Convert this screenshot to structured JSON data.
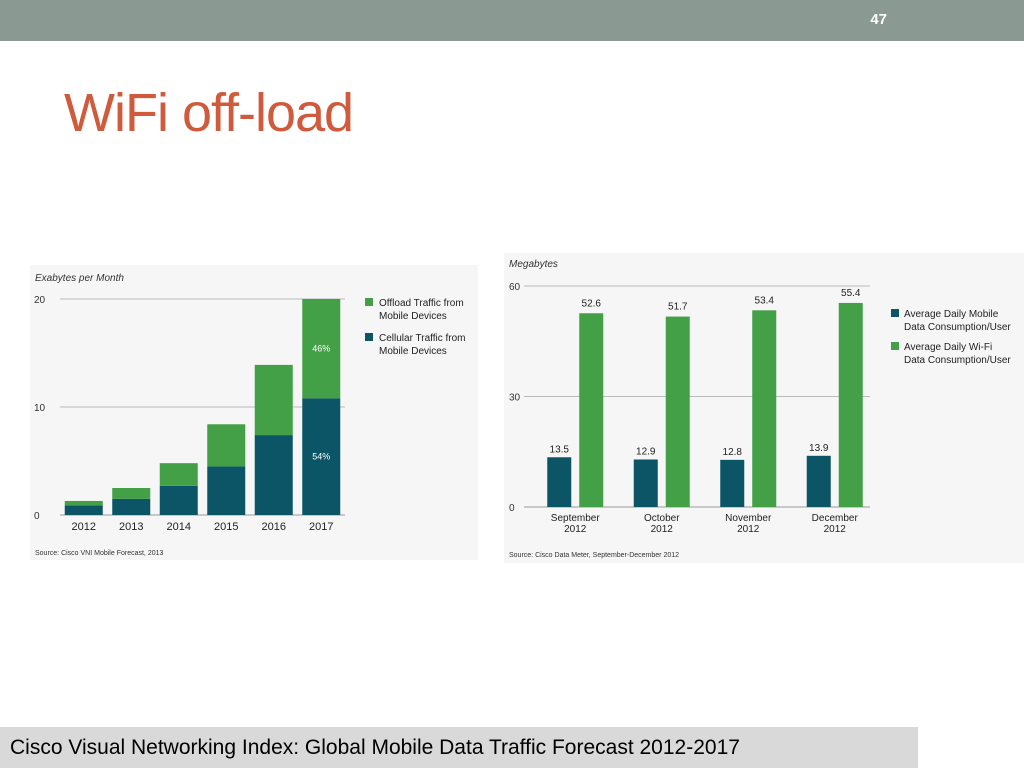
{
  "header": {
    "slide_number": "47",
    "bar_color": "#8a9a92"
  },
  "title": "WiFi off-load",
  "caption": "Cisco Visual Networking Index: Global Mobile Data Traffic Forecast 2012-2017",
  "colors": {
    "title": "#cf5a3c",
    "offload": "#43a047",
    "cellular": "#0b5566"
  },
  "chart_data": [
    {
      "type": "bar",
      "stacked": true,
      "ylabel": "Exabytes per Month",
      "ylim": [
        0,
        20
      ],
      "yticks": [
        0,
        10,
        20
      ],
      "categories": [
        "2012",
        "2013",
        "2014",
        "2015",
        "2016",
        "2017"
      ],
      "series": [
        {
          "name": "Cellular Traffic from Mobile Devices",
          "values": [
            0.9,
            1.5,
            2.7,
            4.5,
            7.4,
            10.8
          ]
        },
        {
          "name": "Offload Traffic from Mobile Devices",
          "values": [
            0.4,
            1.0,
            2.1,
            3.9,
            6.5,
            9.2
          ]
        }
      ],
      "data_labels": [
        {
          "category": "2017",
          "series": "Offload Traffic from Mobile Devices",
          "text": "46%"
        },
        {
          "category": "2017",
          "series": "Cellular Traffic from Mobile Devices",
          "text": "54%"
        }
      ],
      "legend": {
        "placement": "right",
        "items": [
          "Offload Traffic from Mobile Devices",
          "Cellular Traffic from Mobile Devices"
        ]
      },
      "source": "Source: Cisco VNI Mobile Forecast, 2013"
    },
    {
      "type": "bar",
      "stacked": false,
      "ylabel": "Megabytes",
      "ylim": [
        0,
        60
      ],
      "yticks": [
        0,
        30,
        60
      ],
      "categories": [
        "September 2012",
        "October 2012",
        "November 2012",
        "December 2012"
      ],
      "series": [
        {
          "name": "Average Daily Mobile Data Consumption/User",
          "values": [
            13.5,
            12.9,
            12.8,
            13.9
          ]
        },
        {
          "name": "Average Daily Wi-Fi Data Consumption/User",
          "values": [
            52.6,
            51.7,
            53.4,
            55.4
          ]
        }
      ],
      "legend": {
        "placement": "right",
        "items": [
          "Average Daily Mobile Data Consumption/User",
          "Average Daily Wi-Fi Data Consumption/User"
        ]
      },
      "source": "Source: Cisco Data Meter, September-December 2012"
    }
  ]
}
